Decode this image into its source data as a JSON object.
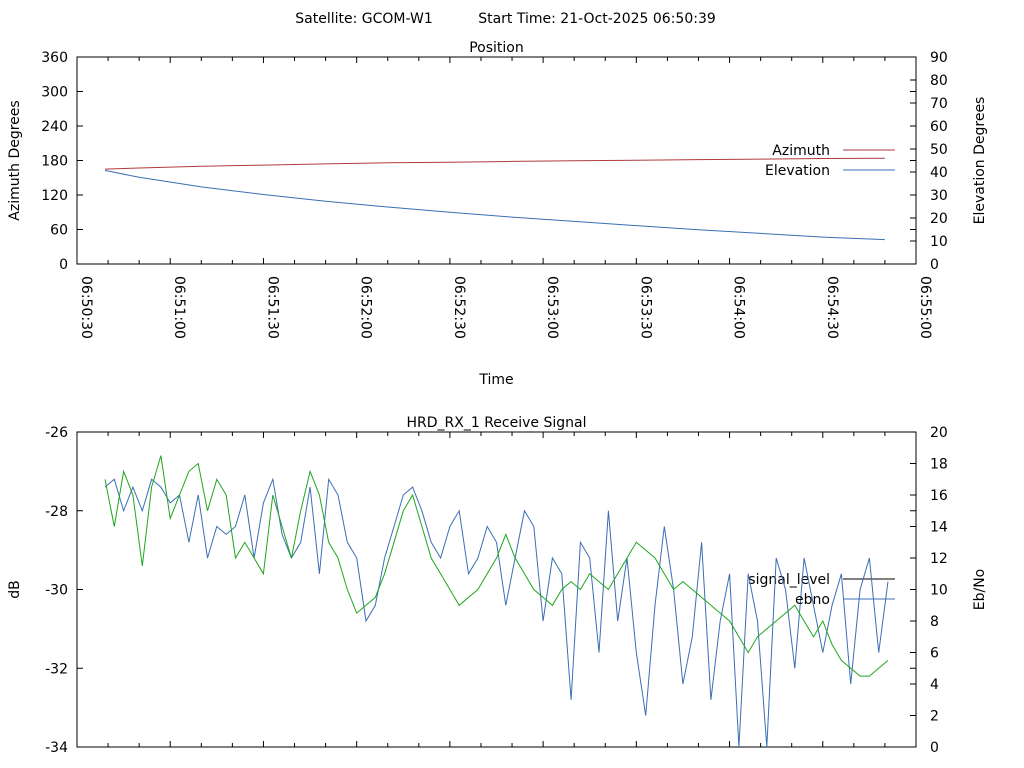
{
  "header": {
    "satellite": "Satellite: GCOM-W1",
    "start_time": "Start Time: 21-Oct-2025 06:50:39"
  },
  "chart_data": [
    {
      "type": "line",
      "title": "Position",
      "xlabel": "Time",
      "ylabel": "Azimuth Degrees",
      "y2label": "Elevation Degrees",
      "xtick_labels": [
        "06:50:30",
        "06:51:00",
        "06:51:30",
        "06:52:00",
        "06:52:30",
        "06:53:00",
        "06:53:30",
        "06:54:00",
        "06:54:30",
        "06:55:00"
      ],
      "xlim_seconds": [
        0,
        270
      ],
      "ylim": [
        0,
        360
      ],
      "yticks": [
        0,
        60,
        120,
        180,
        240,
        300,
        360
      ],
      "y2lim": [
        0,
        90
      ],
      "y2ticks": [
        0,
        10,
        20,
        30,
        40,
        50,
        60,
        70,
        80,
        90
      ],
      "legend_position": "right",
      "series": [
        {
          "name": "Azimuth",
          "axis": "y",
          "color": "#b03a3a",
          "x": [
            9,
            20,
            40,
            60,
            80,
            100,
            120,
            140,
            160,
            180,
            200,
            220,
            240,
            260
          ],
          "y": [
            165,
            167,
            170,
            172,
            174,
            176,
            177,
            178.5,
            179.5,
            180.5,
            181.5,
            182.5,
            183.5,
            184
          ]
        },
        {
          "name": "Elevation",
          "axis": "y2",
          "color": "#3a6fb5",
          "x": [
            9,
            20,
            40,
            60,
            80,
            100,
            120,
            140,
            160,
            180,
            200,
            220,
            240,
            260
          ],
          "y": [
            40.7,
            37.7,
            33.5,
            30.2,
            27.3,
            24.8,
            22.5,
            20.4,
            18.5,
            16.7,
            14.9,
            13.3,
            11.7,
            10.6
          ]
        }
      ]
    },
    {
      "type": "line",
      "title": "HRD_RX_1 Receive Signal",
      "ylabel": "dB",
      "y2label": "Eb/No",
      "ylim": [
        -34,
        -26
      ],
      "yticks": [
        -34,
        -32,
        -30,
        -28,
        -26
      ],
      "y2lim": [
        0,
        20
      ],
      "y2ticks": [
        0,
        2,
        4,
        6,
        8,
        10,
        12,
        14,
        16,
        18,
        20
      ],
      "legend_position": "right",
      "series": [
        {
          "name": "signal_level",
          "axis": "y",
          "color": "#000000",
          "x": [],
          "y": []
        },
        {
          "name": "ebno",
          "axis": "y2",
          "color": "#3a6fb5",
          "x": [
            9,
            12,
            15,
            18,
            21,
            24,
            27,
            30,
            33,
            36,
            39,
            42,
            45,
            48,
            51,
            54,
            57,
            60,
            63,
            66,
            69,
            72,
            75,
            78,
            81,
            84,
            87,
            90,
            93,
            96,
            99,
            102,
            105,
            108,
            111,
            114,
            117,
            120,
            123,
            126,
            129,
            132,
            135,
            138,
            141,
            144,
            147,
            150,
            153,
            156,
            159,
            162,
            165,
            168,
            171,
            174,
            177,
            180,
            183,
            186,
            189,
            192,
            195,
            198,
            201,
            204,
            207,
            210,
            213,
            216,
            219,
            222,
            225,
            228,
            231,
            234,
            237,
            240,
            243,
            246,
            249,
            252,
            255,
            258,
            261
          ],
          "y": [
            16.5,
            17,
            15,
            16.5,
            15,
            17,
            16.5,
            15.5,
            16,
            13,
            16,
            12,
            14,
            13.5,
            14,
            16,
            12,
            15.5,
            17,
            13.5,
            12,
            13,
            16.5,
            11,
            17,
            16,
            13,
            12,
            8,
            9,
            12,
            14,
            16,
            16.5,
            15,
            13,
            12,
            14,
            15,
            11,
            12,
            14,
            13,
            9,
            12,
            15,
            14,
            8,
            12,
            11,
            3,
            13,
            12,
            6,
            15,
            8,
            12,
            6,
            2,
            9,
            14,
            10,
            4,
            7,
            13,
            3,
            8,
            11,
            0,
            11,
            8,
            0,
            12,
            10,
            5,
            12,
            9,
            6,
            9,
            11,
            4,
            10,
            12,
            6,
            10.5
          ]
        },
        {
          "name": "",
          "axis": "y2",
          "color": "#1ea61e",
          "x": [
            9,
            12,
            15,
            18,
            21,
            24,
            27,
            30,
            33,
            36,
            39,
            42,
            45,
            48,
            51,
            54,
            57,
            60,
            63,
            66,
            69,
            72,
            75,
            78,
            81,
            84,
            87,
            90,
            93,
            96,
            99,
            102,
            105,
            108,
            111,
            114,
            117,
            120,
            123,
            126,
            129,
            132,
            135,
            138,
            141,
            144,
            147,
            150,
            153,
            156,
            159,
            162,
            165,
            168,
            171,
            174,
            177,
            180,
            183,
            186,
            189,
            192,
            195,
            198,
            201,
            204,
            207,
            210,
            213,
            216,
            219,
            222,
            225,
            228,
            231,
            234,
            237,
            240,
            243,
            246,
            249,
            252,
            255,
            258,
            261
          ],
          "y": [
            17,
            14,
            17.5,
            16,
            11.5,
            16.5,
            18.5,
            14.5,
            16,
            17.5,
            18,
            15,
            17,
            16,
            12,
            13,
            12,
            11,
            16,
            14,
            12,
            15,
            17.5,
            16,
            13,
            12,
            10,
            8.5,
            9,
            9.5,
            11,
            13,
            15,
            16,
            14,
            12,
            11,
            10,
            9,
            9.5,
            10,
            11,
            12,
            13.5,
            12,
            11,
            10,
            9.5,
            9,
            10,
            10.5,
            10,
            11,
            10.5,
            10,
            11,
            12,
            13,
            12.5,
            12,
            11,
            10,
            10.5,
            10,
            9.5,
            9,
            8.5,
            8,
            7,
            6,
            7,
            7.5,
            8,
            8.5,
            9,
            8,
            7,
            8,
            6.5,
            5.5,
            5,
            4.5,
            4.5,
            5,
            5.5
          ]
        }
      ]
    }
  ]
}
